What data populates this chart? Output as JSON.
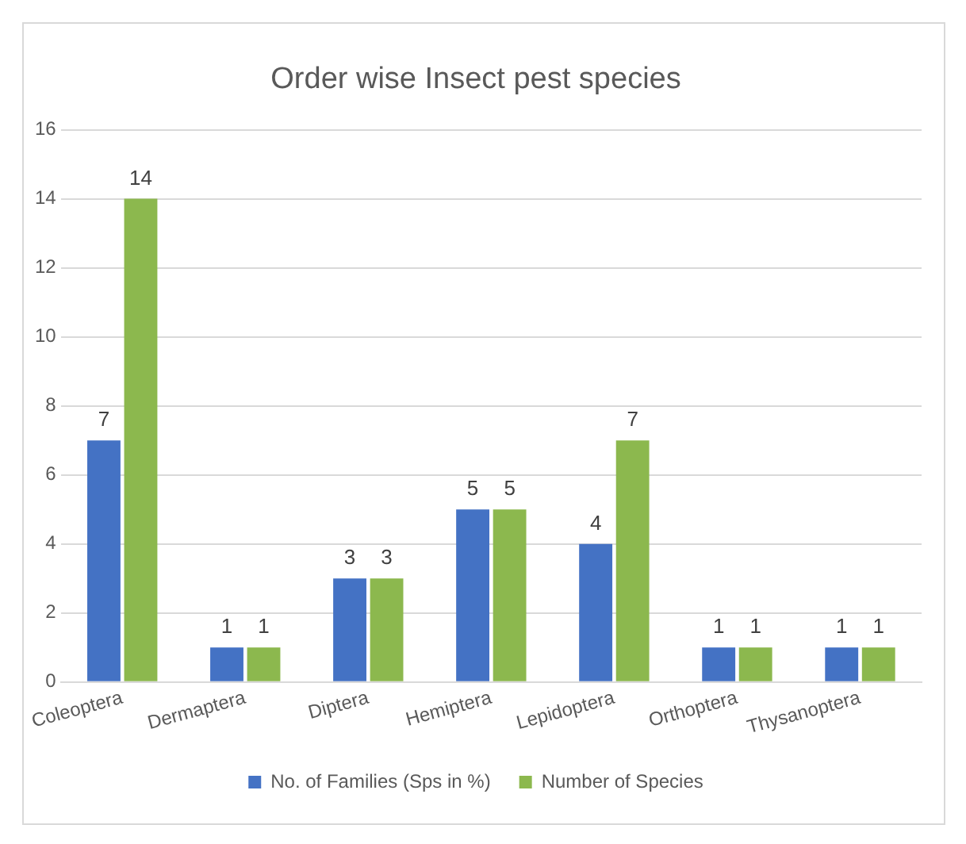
{
  "chart_data": {
    "type": "bar",
    "title": "Order wise Insect pest species",
    "categories": [
      "Coleoptera",
      "Dermaptera",
      "Diptera",
      "Hemiptera",
      "Lepidoptera",
      "Orthoptera",
      "Thysanoptera"
    ],
    "series": [
      {
        "name": "No. of Families (Sps in %)",
        "color": "#4472c4",
        "values": [
          7,
          1,
          3,
          5,
          4,
          1,
          1
        ]
      },
      {
        "name": "Number of Species",
        "color": "#8cb84e",
        "values": [
          14,
          1,
          3,
          5,
          7,
          1,
          1
        ]
      }
    ],
    "ylim": [
      0,
      16
    ],
    "yticks": [
      0,
      2,
      4,
      6,
      8,
      10,
      12,
      14,
      16
    ],
    "grid": "y",
    "legend": "bottom",
    "data_labels": true
  }
}
